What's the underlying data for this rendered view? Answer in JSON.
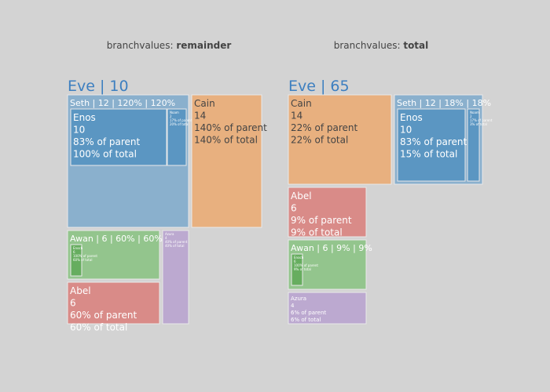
{
  "chart_data": [
    {
      "type": "treemap",
      "subtitle_prefix": "branchvalues: ",
      "subtitle_mode": "remainder",
      "root_label": "Eve | 10",
      "nodes": [
        {
          "id": "seth",
          "lines": [
            "Seth | 12 | 120% | 120%"
          ],
          "header": true,
          "color": "#8ab0cd"
        },
        {
          "id": "enos",
          "lines": [
            "Enos",
            "10",
            "83% of parent",
            "100% of total"
          ],
          "color": "#5b96c2"
        },
        {
          "id": "noam",
          "lines": [
            "Noam",
            "2",
            "17% of parent",
            "20% of total"
          ],
          "color": "#5b96c2",
          "tiny": true
        },
        {
          "id": "cain",
          "lines": [
            "Cain",
            "14",
            "140% of parent",
            "140% of total"
          ],
          "color": "#e8b07f"
        },
        {
          "id": "awan",
          "lines": [
            "Awan | 6 | 60% | 60%"
          ],
          "header": true,
          "color": "#93c58d"
        },
        {
          "id": "enoch",
          "lines": [
            "Enoch",
            "6",
            "100% of parent",
            "60% of total"
          ],
          "color": "#66ad5f",
          "tiny": true
        },
        {
          "id": "azura",
          "lines": [
            "Azura",
            "4",
            "40% of parent",
            "40% of total"
          ],
          "color": "#bca9d0",
          "tiny": true
        },
        {
          "id": "abel",
          "lines": [
            "Abel",
            "6",
            "60% of parent",
            "60% of total"
          ],
          "color": "#d98b88"
        }
      ]
    },
    {
      "type": "treemap",
      "subtitle_prefix": "branchvalues: ",
      "subtitle_mode": "total",
      "root_label": "Eve | 65",
      "nodes": [
        {
          "id": "cain",
          "lines": [
            "Cain",
            "14",
            "22% of parent",
            "22% of total"
          ],
          "color": "#e8b07f"
        },
        {
          "id": "seth",
          "lines": [
            "Seth | 12 | 18% | 18%"
          ],
          "header": true,
          "color": "#8ab0cd"
        },
        {
          "id": "enos",
          "lines": [
            "Enos",
            "10",
            "83% of parent",
            "15% of total"
          ],
          "color": "#5b96c2"
        },
        {
          "id": "noam",
          "lines": [
            "Noam",
            "2",
            "17% of parent",
            "3% of total"
          ],
          "color": "#5b96c2",
          "tiny": true
        },
        {
          "id": "abel",
          "lines": [
            "Abel",
            "6",
            "9% of parent",
            "9% of total"
          ],
          "color": "#d98b88"
        },
        {
          "id": "awan",
          "lines": [
            "Awan | 6 | 9% | 9%"
          ],
          "header": true,
          "color": "#93c58d"
        },
        {
          "id": "enoch",
          "lines": [
            "Enoch",
            "6",
            "100% of parent",
            "9% of total"
          ],
          "color": "#66ad5f",
          "tiny": true
        },
        {
          "id": "azura",
          "lines": [
            "Azura",
            "4",
            "6% of parent",
            "6% of total"
          ],
          "color": "#bca9d0",
          "small": true
        }
      ]
    }
  ]
}
